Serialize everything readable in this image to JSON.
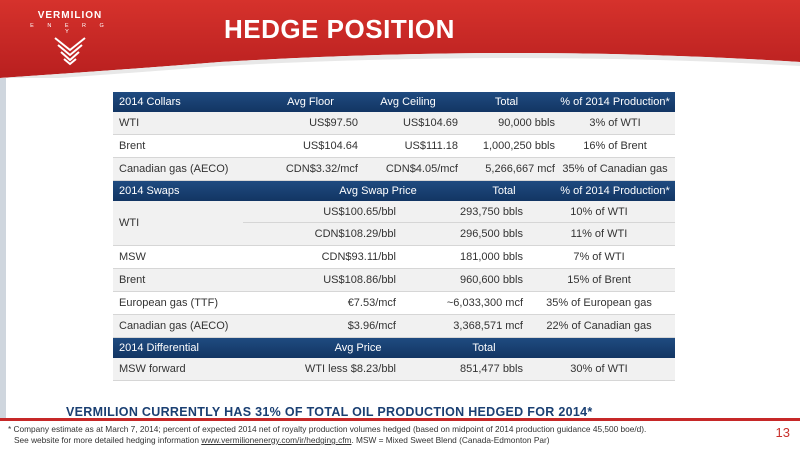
{
  "logo": {
    "name": "VERMILION",
    "sub": "E N E R G Y"
  },
  "title": "HEDGE POSITION",
  "collars": {
    "headers": [
      "2014 Collars",
      "Avg Floor",
      "Avg Ceiling",
      "Total",
      "% of 2014 Production*"
    ],
    "rows": [
      [
        "WTI",
        "US$97.50",
        "US$104.69",
        "90,000 bbls",
        "3% of WTI"
      ],
      [
        "Brent",
        "US$104.64",
        "US$111.18",
        "1,000,250 bbls",
        "16% of Brent"
      ],
      [
        "Canadian gas (AECO)",
        "CDN$3.32/mcf",
        "CDN$4.05/mcf",
        "5,266,667 mcf",
        "35% of Canadian gas"
      ]
    ]
  },
  "swaps": {
    "headers": [
      "2014 Swaps",
      "Avg Swap Price",
      "Total",
      "% of 2014 Production*"
    ],
    "wti_label": "WTI",
    "wti_rows": [
      [
        "US$100.65/bbl",
        "293,750 bbls",
        "10% of WTI"
      ],
      [
        "CDN$108.29/bbl",
        "296,500 bbls",
        "11% of WTI"
      ]
    ],
    "rows": [
      [
        "MSW",
        "CDN$93.11/bbl",
        "181,000 bbls",
        "7% of WTI"
      ],
      [
        "Brent",
        "US$108.86/bbl",
        "960,600 bbls",
        "15% of Brent"
      ],
      [
        "European gas (TTF)",
        "€7.53/mcf",
        "~6,033,300 mcf",
        "35% of European gas"
      ],
      [
        "Canadian gas (AECO)",
        "$3.96/mcf",
        "3,368,571 mcf",
        "22% of Canadian gas"
      ]
    ]
  },
  "differential": {
    "headers": [
      "2014 Differential",
      "Avg Price",
      "Total",
      ""
    ],
    "rows": [
      [
        "MSW forward",
        "WTI less $8.23/bbl",
        "851,477 bbls",
        "30% of WTI"
      ]
    ]
  },
  "headline": "VERMILION CURRENTLY HAS 31% OF TOTAL OIL PRODUCTION HEDGED FOR 2014*",
  "footnote": {
    "line1": "* Company estimate as at March 7, 2014; percent of expected 2014 net of royalty production volumes hedged (based on midpoint of 2014 production guidance 45,500 boe/d).",
    "line2_pre": "See website for more detailed hedging information ",
    "link": "www.vermilionenergy.com/ir/hedging.cfm",
    "line2_post": ".  MSW = Mixed Sweet Blend (Canada-Edmonton Par)"
  },
  "page_number": "13",
  "colors": {
    "brand_red": "#c62828",
    "navy": "#1a3f72"
  }
}
